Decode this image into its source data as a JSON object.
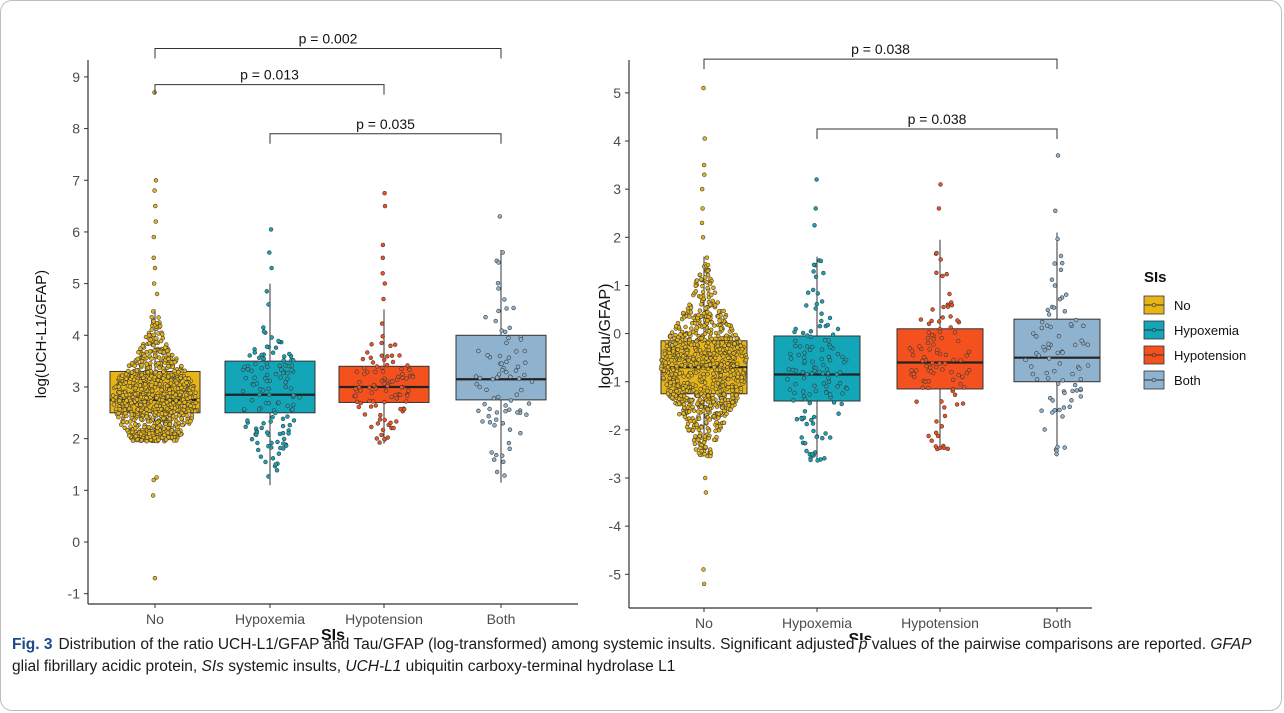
{
  "figure": {
    "label": "Fig. 3",
    "caption_parts": [
      {
        "text": "Distribution of the ratio UCH-L1/GFAP and Tau/GFAP (log-transformed) among systemic insults. Significant adjusted ",
        "italic": false
      },
      {
        "text": "p",
        "italic": true
      },
      {
        "text": " values of the pairwise comparisons are reported. ",
        "italic": false
      },
      {
        "text": "GFAP",
        "italic": true
      },
      {
        "text": " glial fibrillary acidic protein, ",
        "italic": false
      },
      {
        "text": "SIs",
        "italic": true
      },
      {
        "text": " systemic insults, ",
        "italic": false
      },
      {
        "text": "UCH-L1",
        "italic": true
      },
      {
        "text": " ubiquitin carboxy-terminal hydrolase L1",
        "italic": false
      }
    ]
  },
  "legend": {
    "title": "SIs",
    "placement": "right",
    "entries": [
      {
        "label": "No",
        "color": "#E8B517"
      },
      {
        "label": "Hypoxemia",
        "color": "#12A6B8"
      },
      {
        "label": "Hypotension",
        "color": "#F4511E"
      },
      {
        "label": "Both",
        "color": "#8FB2CE"
      }
    ]
  },
  "chart_data": [
    {
      "type": "box",
      "xlabel": "SIs",
      "ylabel": "log(UCH-L1/GFAP)",
      "categories": [
        "No",
        "Hypoxemia",
        "Hypotension",
        "Both"
      ],
      "colors": [
        "#E8B517",
        "#12A6B8",
        "#F4511E",
        "#8FB2CE"
      ],
      "ylim": [
        -1.2,
        9.25
      ],
      "yticks": [
        -1,
        0,
        1,
        2,
        3,
        4,
        5,
        6,
        7,
        8,
        9
      ],
      "grid": false,
      "boxes": [
        {
          "category": "No",
          "whisker_low": 1.95,
          "q1": 2.5,
          "median": 2.75,
          "q3": 3.3,
          "whisker_high": 4.5
        },
        {
          "category": "Hypoxemia",
          "whisker_low": 1.1,
          "q1": 2.5,
          "median": 2.85,
          "q3": 3.5,
          "whisker_high": 5.0
        },
        {
          "category": "Hypotension",
          "whisker_low": 1.9,
          "q1": 2.7,
          "median": 3.0,
          "q3": 3.4,
          "whisker_high": 4.5
        },
        {
          "category": "Both",
          "whisker_low": 1.15,
          "q1": 2.75,
          "median": 3.15,
          "q3": 4.0,
          "whisker_high": 5.65
        }
      ],
      "outliers": {
        "No": [
          0.9,
          1.2,
          1.25,
          4.8,
          5.0,
          5.3,
          5.5,
          5.9,
          6.2,
          6.5,
          6.8,
          7.0,
          8.7,
          -0.7
        ],
        "Hypoxemia": [
          5.3,
          5.6,
          6.05
        ],
        "Hypotension": [
          4.7,
          5.0,
          5.2,
          5.5,
          5.75,
          6.5,
          6.75
        ],
        "Both": [
          6.3
        ]
      },
      "comparisons": [
        {
          "from": "No",
          "to": "Both",
          "label": "p = 0.002",
          "y": 9.55
        },
        {
          "from": "No",
          "to": "Hypotension",
          "label": "p = 0.013",
          "y": 8.85
        },
        {
          "from": "Hypoxemia",
          "to": "Both",
          "label": "p = 0.035",
          "y": 7.9
        }
      ]
    },
    {
      "type": "box",
      "xlabel": "SIs",
      "ylabel": "log(Tau/GFAP)",
      "categories": [
        "No",
        "Hypoxemia",
        "Hypotension",
        "Both"
      ],
      "colors": [
        "#E8B517",
        "#12A6B8",
        "#F4511E",
        "#8FB2CE"
      ],
      "ylim": [
        -5.7,
        5.6
      ],
      "yticks": [
        -5,
        -4,
        -3,
        -2,
        -1,
        0,
        1,
        2,
        3,
        4,
        5
      ],
      "grid": false,
      "boxes": [
        {
          "category": "No",
          "whisker_low": -2.55,
          "q1": -1.25,
          "median": -0.7,
          "q3": -0.15,
          "whisker_high": 1.6
        },
        {
          "category": "Hypoxemia",
          "whisker_low": -2.65,
          "q1": -1.4,
          "median": -0.85,
          "q3": -0.05,
          "whisker_high": 1.6
        },
        {
          "category": "Hypotension",
          "whisker_low": -2.4,
          "q1": -1.15,
          "median": -0.6,
          "q3": 0.1,
          "whisker_high": 1.95
        },
        {
          "category": "Both",
          "whisker_low": -2.55,
          "q1": -1.0,
          "median": -0.5,
          "q3": 0.3,
          "whisker_high": 2.1
        }
      ],
      "outliers": {
        "No": [
          2.0,
          2.3,
          2.6,
          3.0,
          3.3,
          3.5,
          4.05,
          5.1,
          -3.0,
          -3.3,
          -4.9,
          -5.2
        ],
        "Hypoxemia": [
          2.25,
          2.6,
          3.2
        ],
        "Hypotension": [
          2.6,
          3.1
        ],
        "Both": [
          2.55,
          3.7
        ]
      },
      "comparisons": [
        {
          "from": "No",
          "to": "Both",
          "label": "p = 0.038",
          "y": 5.7
        },
        {
          "from": "Hypoxemia",
          "to": "Both",
          "label": "p = 0.038",
          "y": 4.25
        }
      ]
    }
  ]
}
